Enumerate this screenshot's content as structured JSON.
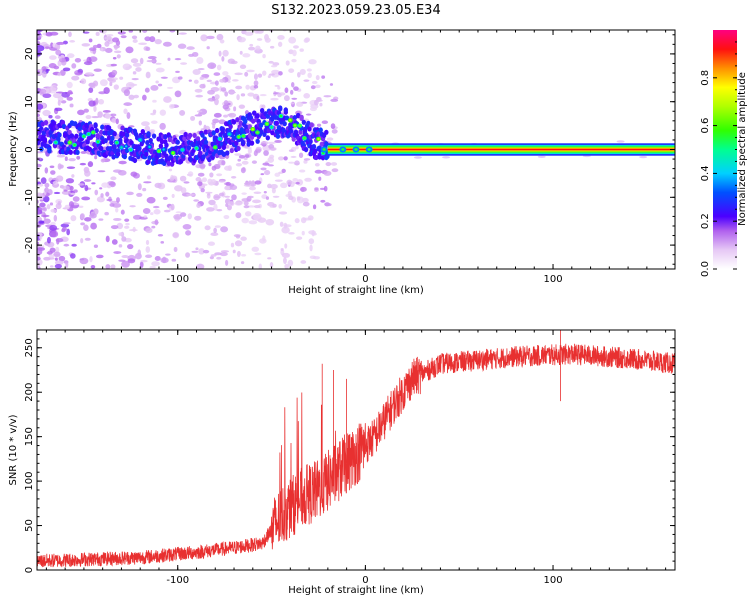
{
  "title": "S132.2023.059.23.05.E34",
  "chart_data": [
    {
      "type": "heatmap",
      "xlabel": "Height of straight line (km)",
      "ylabel": "Frequency (Hz)",
      "xlim": [
        -175,
        165
      ],
      "ylim": [
        -25,
        25
      ],
      "x_ticks": [
        -100,
        0,
        100
      ],
      "y_ticks": [
        -20,
        -10,
        0,
        10,
        20
      ],
      "colorbar": {
        "label": "Normalized spectral amplitude",
        "range": [
          0,
          1
        ],
        "ticks": [
          0.0,
          0.2,
          0.4,
          0.6,
          0.8
        ]
      },
      "ridge": {
        "description_points": [
          {
            "x": -175,
            "y": 3
          },
          {
            "x": -140,
            "y": 2
          },
          {
            "x": -110,
            "y": 0
          },
          {
            "x": -90,
            "y": 0
          },
          {
            "x": -70,
            "y": 3
          },
          {
            "x": -55,
            "y": 5
          },
          {
            "x": -45,
            "y": 6
          },
          {
            "x": -35,
            "y": 4
          },
          {
            "x": -25,
            "y": 1
          },
          {
            "x": -15,
            "y": 0
          },
          {
            "x": 165,
            "y": 0
          }
        ],
        "saturated_from_x": -20
      }
    },
    {
      "type": "line",
      "xlabel": "Height of straight line (km)",
      "ylabel": "SNR (10 * v/v)",
      "xlim": [
        -175,
        165
      ],
      "ylim": [
        0,
        270
      ],
      "x_ticks": [
        -100,
        0,
        100
      ],
      "y_ticks": [
        0,
        50,
        100,
        150,
        200,
        250
      ],
      "color": "#e83030",
      "trend": [
        {
          "x": -175,
          "y": 10
        },
        {
          "x": -120,
          "y": 14
        },
        {
          "x": -90,
          "y": 20
        },
        {
          "x": -70,
          "y": 25
        },
        {
          "x": -55,
          "y": 30
        },
        {
          "x": -45,
          "y": 60
        },
        {
          "x": -35,
          "y": 80
        },
        {
          "x": -25,
          "y": 90
        },
        {
          "x": -15,
          "y": 110
        },
        {
          "x": -5,
          "y": 130
        },
        {
          "x": 5,
          "y": 150
        },
        {
          "x": 15,
          "y": 185
        },
        {
          "x": 25,
          "y": 215
        },
        {
          "x": 40,
          "y": 232
        },
        {
          "x": 80,
          "y": 240
        },
        {
          "x": 110,
          "y": 243
        },
        {
          "x": 140,
          "y": 238
        },
        {
          "x": 165,
          "y": 232
        }
      ],
      "spikes": [
        {
          "x": -23,
          "y": 232
        },
        {
          "x": -17,
          "y": 225
        },
        {
          "x": -10,
          "y": 215
        },
        {
          "x": 104,
          "y": 270
        },
        {
          "x": 104,
          "y": 190
        }
      ]
    }
  ]
}
